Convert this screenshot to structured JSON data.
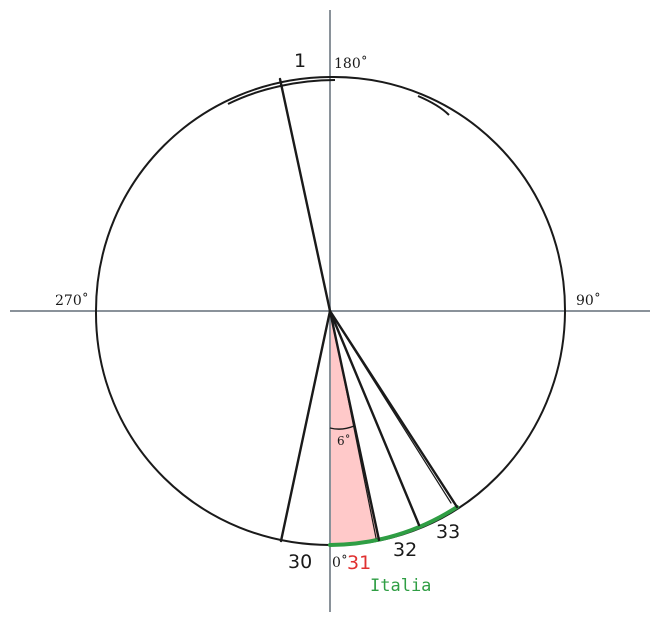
{
  "axis_labels": {
    "top": "180˚",
    "right": "90˚",
    "left": "270˚",
    "bottom": "0˚"
  },
  "ray_labels": {
    "r1": "1",
    "r30": "30",
    "r31": "31",
    "r32": "32",
    "r33": "33"
  },
  "angle_label": "6˚",
  "region_label": "Italia",
  "colors": {
    "wedge_fill": "#ffc9c9",
    "arc_green": "#2f9e44",
    "label_red": "#e03131",
    "axis_gray": "#8a929a",
    "ink": "#1a1a1a"
  }
}
